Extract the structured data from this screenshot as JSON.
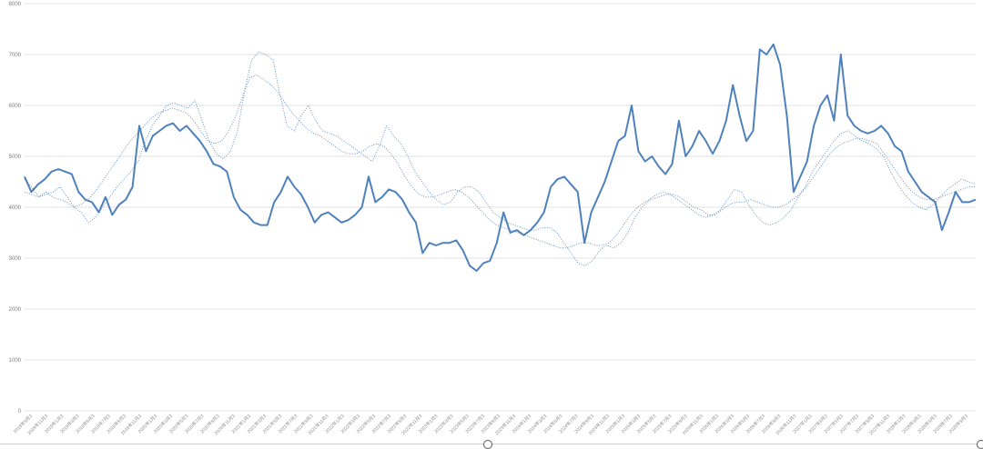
{
  "chart_data": {
    "type": "line",
    "title": "",
    "xlabel": "",
    "ylabel": "",
    "ylim": [
      0,
      8000
    ],
    "y_ticks": [
      0,
      1000,
      2000,
      3000,
      4000,
      5000,
      6000,
      7000,
      8000
    ],
    "grid": true,
    "legend": "none",
    "colors": {
      "main": "#4f81bd",
      "avg": "#4f81bd"
    },
    "x_ticks": [
      "2018年9月3",
      "2018年11月3",
      "2019年1月3",
      "2019年3月3",
      "2019年5月3",
      "2019年7月3",
      "2019年9月3",
      "2019年11月3",
      "2020年1月3",
      "2020年3月3",
      "2020年5月3",
      "2020年7月3",
      "2020年9月3",
      "2020年11月3",
      "2021年1月3",
      "2021年3月3",
      "2021年5月3",
      "2021年7月3",
      "2021年9月3",
      "2021年11月3",
      "2022年1月3",
      "2022年3月3",
      "2022年5月3",
      "2022年7月3",
      "2022年9月3",
      "2022年11月3",
      "2023年1月3",
      "2023年3月3",
      "2023年5月3",
      "2023年7月3",
      "2023年9月3",
      "2023年11月3",
      "2024年1月3",
      "2024年3月3",
      "2024年5月3",
      "2024年7月3",
      "2024年9月3",
      "2024年11月3",
      "2025年1月3",
      "2025年3月3",
      "2025年5月3",
      "2025年7月3",
      "2025年9月3",
      "2025年11月3",
      "2026年1月3",
      "2026年3月3",
      "2026年5月3",
      "2026年7月3",
      "2026年9月3",
      "2026年11月3",
      "2027年1月3",
      "2027年3月3",
      "2027年5月3",
      "2027年7月3",
      "2027年9月3",
      "2027年11月3",
      "2028年1月3",
      "2028年3月3",
      "2028年5月3",
      "2028年7月3",
      "2028年9月3"
    ],
    "series": [
      {
        "style": "solid",
        "values": [
          4600,
          4300,
          4450,
          4550,
          4700,
          4750,
          4700,
          4650,
          4300,
          4150,
          4100,
          3900,
          4200,
          3850,
          4050,
          4150,
          4400,
          5600,
          5100,
          5400,
          5500,
          5600,
          5650,
          5500,
          5600,
          5450,
          5300,
          5100,
          4850,
          4800,
          4700,
          4200,
          3950,
          3850,
          3700,
          3650,
          3650,
          4100,
          4300,
          4600,
          4400,
          4250,
          4000,
          3700,
          3850,
          3900,
          3800,
          3700,
          3750,
          3850,
          4000,
          4600,
          4100,
          4200,
          4350,
          4300,
          4150,
          3900,
          3700,
          3100,
          3300,
          3250,
          3300,
          3300,
          3350,
          3150,
          2850,
          2750,
          2900,
          2950,
          3300,
          3900,
          3500,
          3550,
          3450,
          3550,
          3700,
          3900,
          4400,
          4550,
          4600,
          4450,
          4300,
          3300,
          3900,
          4200,
          4500,
          4900,
          5300,
          5400,
          6000,
          5100,
          4900,
          5000,
          4800,
          4650,
          4850,
          5700,
          5000,
          5200,
          5500,
          5300,
          5050,
          5300,
          5700,
          6400,
          5800,
          5300,
          5500,
          7100,
          7000,
          7200,
          6800,
          5800,
          4300,
          4600,
          4900,
          5600,
          6000,
          6200,
          5700,
          7000,
          5800,
          5600,
          5500,
          5450,
          5500,
          5600,
          5450,
          5200,
          5100,
          4700,
          4500,
          4300,
          4200,
          4100,
          3550,
          3900,
          4300,
          4100,
          4100,
          4150
        ]
      },
      {
        "style": "dotted",
        "values": [
          4550,
          4400,
          4200,
          4250,
          4300,
          4400,
          4200,
          4000,
          3900,
          3700,
          3800,
          4000,
          4200,
          4400,
          4550,
          4700,
          4900,
          5300,
          5600,
          5800,
          6000,
          6050,
          6000,
          5950,
          6100,
          5700,
          5300,
          5050,
          4950,
          5100,
          5500,
          6300,
          6900,
          7050,
          7000,
          6900,
          6200,
          5600,
          5500,
          5800,
          6000,
          5700,
          5500,
          5450,
          5400,
          5300,
          5200,
          5100,
          5000,
          4900,
          5200,
          5600,
          5400,
          5250,
          5000,
          4700,
          4500,
          4300,
          4150,
          4050,
          4100,
          4300,
          4400,
          4400,
          4300,
          4100,
          3900,
          3800,
          3700,
          3650,
          3600,
          3550,
          3550,
          3600,
          3600,
          3500,
          3300,
          3100,
          2900,
          2850,
          2950,
          3150,
          3250,
          3200,
          3300,
          3500,
          3800,
          4000,
          4150,
          4250,
          4300,
          4250,
          4150,
          4050,
          3950,
          3850,
          3800,
          3850,
          3950,
          4150,
          4350,
          4300,
          4050,
          3850,
          3700,
          3650,
          3700,
          3800,
          3950,
          4200,
          4400,
          4700,
          4900,
          5100,
          5300,
          5450,
          5500,
          5400,
          5300,
          5250,
          5150,
          5000,
          4700,
          4450,
          4250,
          4100,
          4000,
          3950,
          4050,
          4200,
          4350,
          4450,
          4550,
          4500,
          4450
        ]
      },
      {
        "style": "dotted",
        "values": [
          4300,
          4250,
          4200,
          4300,
          4200,
          4150,
          4100,
          4000,
          4050,
          4150,
          4300,
          4500,
          4700,
          4900,
          5100,
          5300,
          5450,
          5600,
          5750,
          5850,
          5900,
          5950,
          5900,
          5850,
          5700,
          5500,
          5300,
          5250,
          5300,
          5500,
          5800,
          6200,
          6550,
          6600,
          6500,
          6400,
          6250,
          6050,
          5850,
          5700,
          5550,
          5450,
          5400,
          5300,
          5200,
          5100,
          5050,
          5050,
          5100,
          5200,
          5250,
          5200,
          5050,
          4850,
          4600,
          4400,
          4250,
          4200,
          4200,
          4250,
          4300,
          4350,
          4300,
          4200,
          4050,
          3900,
          3750,
          3650,
          3600,
          3550,
          3500,
          3450,
          3400,
          3350,
          3300,
          3250,
          3200,
          3200,
          3250,
          3300,
          3300,
          3250,
          3250,
          3300,
          3450,
          3650,
          3850,
          4000,
          4100,
          4150,
          4200,
          4250,
          4250,
          4200,
          4100,
          4000,
          3950,
          3850,
          3850,
          3950,
          4050,
          4100,
          4100,
          4150,
          4100,
          4050,
          4000,
          4000,
          4050,
          4150,
          4250,
          4400,
          4600,
          4800,
          5000,
          5150,
          5250,
          5300,
          5350,
          5350,
          5300,
          5250,
          5050,
          4850,
          4650,
          4450,
          4300,
          4200,
          4150,
          4150,
          4200,
          4250,
          4300,
          4350,
          4400,
          4400
        ]
      }
    ]
  }
}
